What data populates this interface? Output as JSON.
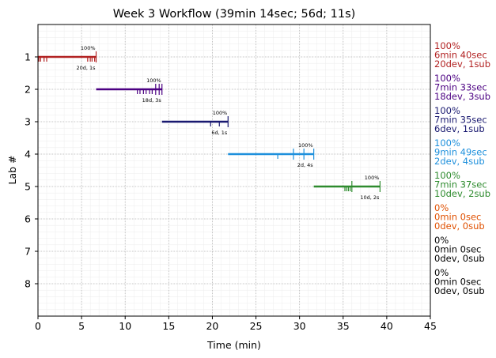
{
  "chart_data": {
    "type": "timeline",
    "title": "Week 3 Workflow (39min 14sec; 56d; 11s)",
    "xlabel": "Time (min)",
    "ylabel": "Lab #",
    "xlim": [
      0,
      45
    ],
    "ylim": [
      0,
      9
    ],
    "x_ticks": [
      0,
      5,
      10,
      15,
      20,
      25,
      30,
      35,
      40,
      45
    ],
    "y_ticks": [
      1,
      2,
      3,
      4,
      5,
      6,
      7,
      8
    ],
    "grid": true,
    "labs": [
      {
        "lab": 1,
        "color": "#b22222",
        "start": 0.0,
        "end": 6.67,
        "pct": "100%",
        "counts": "20d, 1s",
        "summary": [
          "100%",
          "6min 40sec",
          "20dev, 1sub"
        ],
        "dev_marks": [
          0.1,
          0.3,
          0.7,
          1.0,
          5.7,
          6.0,
          6.2,
          6.5
        ],
        "sub_marks": [
          6.67
        ]
      },
      {
        "lab": 2,
        "color": "#4b0082",
        "start": 6.67,
        "end": 14.22,
        "pct": "100%",
        "counts": "18d, 3s",
        "summary": [
          "100%",
          "7min 33sec",
          "18dev, 3sub"
        ],
        "dev_marks": [
          11.4,
          11.7,
          12.1,
          12.4,
          12.8,
          13.1
        ],
        "sub_marks": [
          13.5,
          13.9,
          14.22
        ]
      },
      {
        "lab": 3,
        "color": "#191970",
        "start": 14.22,
        "end": 21.8,
        "pct": "100%",
        "counts": "6d, 1s",
        "summary": [
          "100%",
          "7min 35sec",
          "6dev, 1sub"
        ],
        "dev_marks": [
          19.8,
          20.8
        ],
        "sub_marks": [
          21.8
        ]
      },
      {
        "lab": 4,
        "color": "#1e90dc",
        "start": 21.8,
        "end": 31.63,
        "pct": "100%",
        "counts": "2d, 4s",
        "summary": [
          "100%",
          "9min 49sec",
          "2dev, 4sub"
        ],
        "dev_marks": [
          27.5
        ],
        "sub_marks": [
          29.3,
          30.5,
          31.63
        ]
      },
      {
        "lab": 5,
        "color": "#2e8b2e",
        "start": 31.63,
        "end": 39.23,
        "pct": "100%",
        "counts": "10d, 2s",
        "summary": [
          "100%",
          "7min 37sec",
          "10dev, 2sub"
        ],
        "dev_marks": [
          35.2,
          35.4,
          35.6,
          35.8
        ],
        "sub_marks": [
          36.0,
          39.23
        ]
      },
      {
        "lab": 6,
        "color": "#e05000",
        "summary": [
          "0%",
          "0min 0sec",
          "0dev, 0sub"
        ]
      },
      {
        "lab": 7,
        "color": "#000000",
        "summary": [
          "0%",
          "0min 0sec",
          "0dev, 0sub"
        ]
      },
      {
        "lab": 8,
        "color": "#000000",
        "summary": [
          "0%",
          "0min 0sec",
          "0dev, 0sub"
        ]
      }
    ]
  }
}
